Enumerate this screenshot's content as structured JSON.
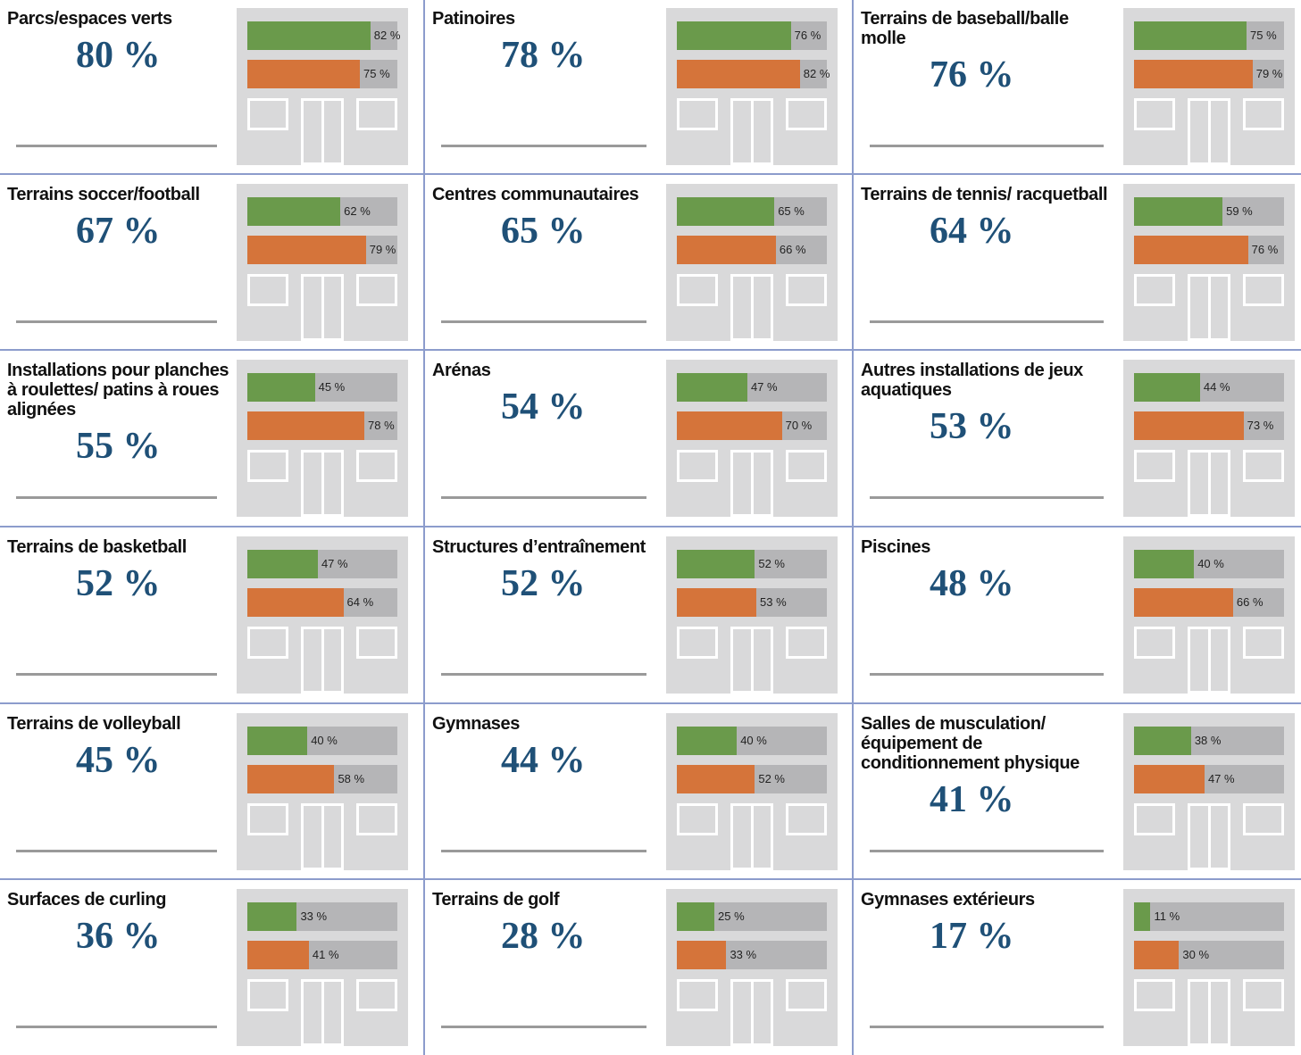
{
  "bar_colors": [
    "#6a9a4b",
    "#d5743a"
  ],
  "xlim": [
    0,
    100
  ],
  "panels": [
    {
      "title": "Parcs/espaces verts",
      "headline": "80 %",
      "bars": {
        "values": [
          82,
          75
        ],
        "value_labels": [
          "82 %",
          "75 %"
        ]
      }
    },
    {
      "title": "Patinoires",
      "headline": "78 %",
      "bars": {
        "values": [
          76,
          82
        ],
        "value_labels": [
          "76 %",
          "82 %"
        ]
      }
    },
    {
      "title": "Terrains de baseball/balle molle",
      "headline": "76 %",
      "bars": {
        "values": [
          75,
          79
        ],
        "value_labels": [
          "75 %",
          "79 %"
        ]
      }
    },
    {
      "title": "Terrains soccer/football",
      "headline": "67 %",
      "bars": {
        "values": [
          62,
          79
        ],
        "value_labels": [
          "62 %",
          "79 %"
        ]
      }
    },
    {
      "title": "Centres communautaires",
      "headline": "65 %",
      "bars": {
        "values": [
          65,
          66
        ],
        "value_labels": [
          "65 %",
          "66 %"
        ]
      }
    },
    {
      "title": "Terrains de tennis/ racquetball",
      "headline": "64 %",
      "bars": {
        "values": [
          59,
          76
        ],
        "value_labels": [
          "59 %",
          "76 %"
        ]
      }
    },
    {
      "title": "Installations pour planches à roulettes/ patins à roues alignées",
      "headline": "55 %",
      "bars": {
        "values": [
          45,
          78
        ],
        "value_labels": [
          "45 %",
          "78 %"
        ]
      }
    },
    {
      "title": "Arénas",
      "headline": "54 %",
      "bars": {
        "values": [
          47,
          70
        ],
        "value_labels": [
          "47 %",
          "70 %"
        ]
      }
    },
    {
      "title": "Autres installations de jeux aquatiques",
      "headline": "53 %",
      "bars": {
        "values": [
          44,
          73
        ],
        "value_labels": [
          "44 %",
          "73 %"
        ]
      }
    },
    {
      "title": "Terrains de basketball",
      "headline": "52 %",
      "bars": {
        "values": [
          47,
          64
        ],
        "value_labels": [
          "47 %",
          "64 %"
        ]
      }
    },
    {
      "title": "Structures d’entraînement",
      "headline": "52 %",
      "bars": {
        "values": [
          52,
          53
        ],
        "value_labels": [
          "52 %",
          "53 %"
        ]
      }
    },
    {
      "title": "Piscines",
      "headline": "48 %",
      "bars": {
        "values": [
          40,
          66
        ],
        "value_labels": [
          "40 %",
          "66 %"
        ]
      }
    },
    {
      "title": "Terrains de volleyball",
      "headline": "45 %",
      "bars": {
        "values": [
          40,
          58
        ],
        "value_labels": [
          "40 %",
          "58 %"
        ]
      }
    },
    {
      "title": "Gymnases",
      "headline": "44 %",
      "bars": {
        "values": [
          40,
          52
        ],
        "value_labels": [
          "40 %",
          "52 %"
        ]
      }
    },
    {
      "title": "Salles de musculation/ équipement de conditionnement physique",
      "headline": "41 %",
      "bars": {
        "values": [
          38,
          47
        ],
        "value_labels": [
          "38 %",
          "47 %"
        ]
      }
    },
    {
      "title": "Surfaces de curling",
      "headline": "36 %",
      "bars": {
        "values": [
          33,
          41
        ],
        "value_labels": [
          "33 %",
          "41 %"
        ]
      }
    },
    {
      "title": "Terrains de golf",
      "headline": "28 %",
      "bars": {
        "values": [
          25,
          33
        ],
        "value_labels": [
          "25 %",
          "33 %"
        ]
      }
    },
    {
      "title": "Gymnases extérieurs",
      "headline": "17 %",
      "bars": {
        "values": [
          11,
          30
        ],
        "value_labels": [
          "11 %",
          "30 %"
        ]
      }
    }
  ]
}
